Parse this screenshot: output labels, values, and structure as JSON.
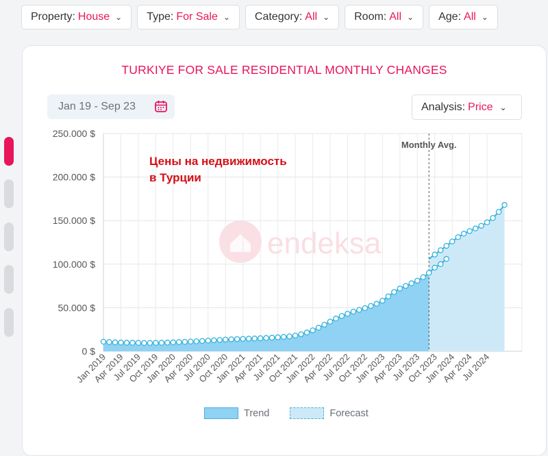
{
  "filters": [
    {
      "label": "Property:",
      "value": "House"
    },
    {
      "label": "Type:",
      "value": "For Sale"
    },
    {
      "label": "Category:",
      "value": "All"
    },
    {
      "label": "Room:",
      "value": "All"
    },
    {
      "label": "Age:",
      "value": "All"
    }
  ],
  "date_range": "Jan 19 - Sep 23",
  "analysis": {
    "label": "Analysis:",
    "value": "Price"
  },
  "annotation": {
    "line1": "Цены на недвижимость",
    "line2": "в Турции"
  },
  "watermark": "endeksa",
  "icons": {
    "calendar": "calendar-icon",
    "chevron": "chevron-down-icon",
    "watermark": "house-logo-icon"
  },
  "colors": {
    "accent": "#e8155a",
    "trend_fill": "#8fd2f3",
    "forecast_fill": "#cde9f8",
    "line": "#35b3de",
    "annotation": "#d40f17"
  },
  "chart_data": {
    "type": "area",
    "title": "TURKIYE FOR SALE RESIDENTIAL MONTHLY CHANGES",
    "xlabel": "",
    "ylabel": "",
    "ylim": [
      0,
      250000
    ],
    "y_ticks": [
      "0 $",
      "50.000 $",
      "100.000 $",
      "150.000 $",
      "200.000 $",
      "250.000 $"
    ],
    "y_tick_values": [
      0,
      50000,
      100000,
      150000,
      200000,
      250000
    ],
    "x_tick_labels": [
      "Jan 2019",
      "Apr 2019",
      "Jul 2019",
      "Oct 2019",
      "Jan 2020",
      "Apr 2020",
      "Jul 2020",
      "Oct 2020",
      "Jan 2021",
      "Apr 2021",
      "Jul 2021",
      "Oct 2021",
      "Jan 2022",
      "Apr 2022",
      "Jul 2022",
      "Oct 2022",
      "Jan 2023",
      "Apr 2023",
      "Jul 2023",
      "Oct 2023",
      "Jan 2024",
      "Apr 2024",
      "Jul 2024"
    ],
    "grid": true,
    "legend_position": "bottom",
    "marker_label": "Monthly Avg.",
    "marker_at": "Sep 2023",
    "series": [
      {
        "name": "Trend",
        "start": "Jan 2019",
        "values": [
          11000,
          10500,
          10200,
          10000,
          9800,
          9700,
          9600,
          9500,
          9500,
          9600,
          9700,
          9900,
          10200,
          10500,
          10800,
          11100,
          11400,
          11800,
          12200,
          12600,
          13000,
          13400,
          13700,
          14000,
          14200,
          14400,
          14600,
          14900,
          15200,
          15600,
          16000,
          16500,
          17000,
          18000,
          19500,
          21500,
          24000,
          27000,
          30500,
          34000,
          37500,
          40500,
          43000,
          45500,
          47500,
          49500,
          52000,
          54500,
          58000,
          63000,
          68000,
          72000,
          75000,
          78000,
          81000,
          85000,
          90000,
          96000,
          100000,
          106000
        ]
      },
      {
        "name": "Forecast",
        "start": "Sep 2023",
        "values": [
          106000,
          111000,
          116000,
          121000,
          126000,
          131000,
          135000,
          138000,
          141000,
          144000,
          148000,
          153000,
          160000,
          168000
        ]
      }
    ]
  }
}
